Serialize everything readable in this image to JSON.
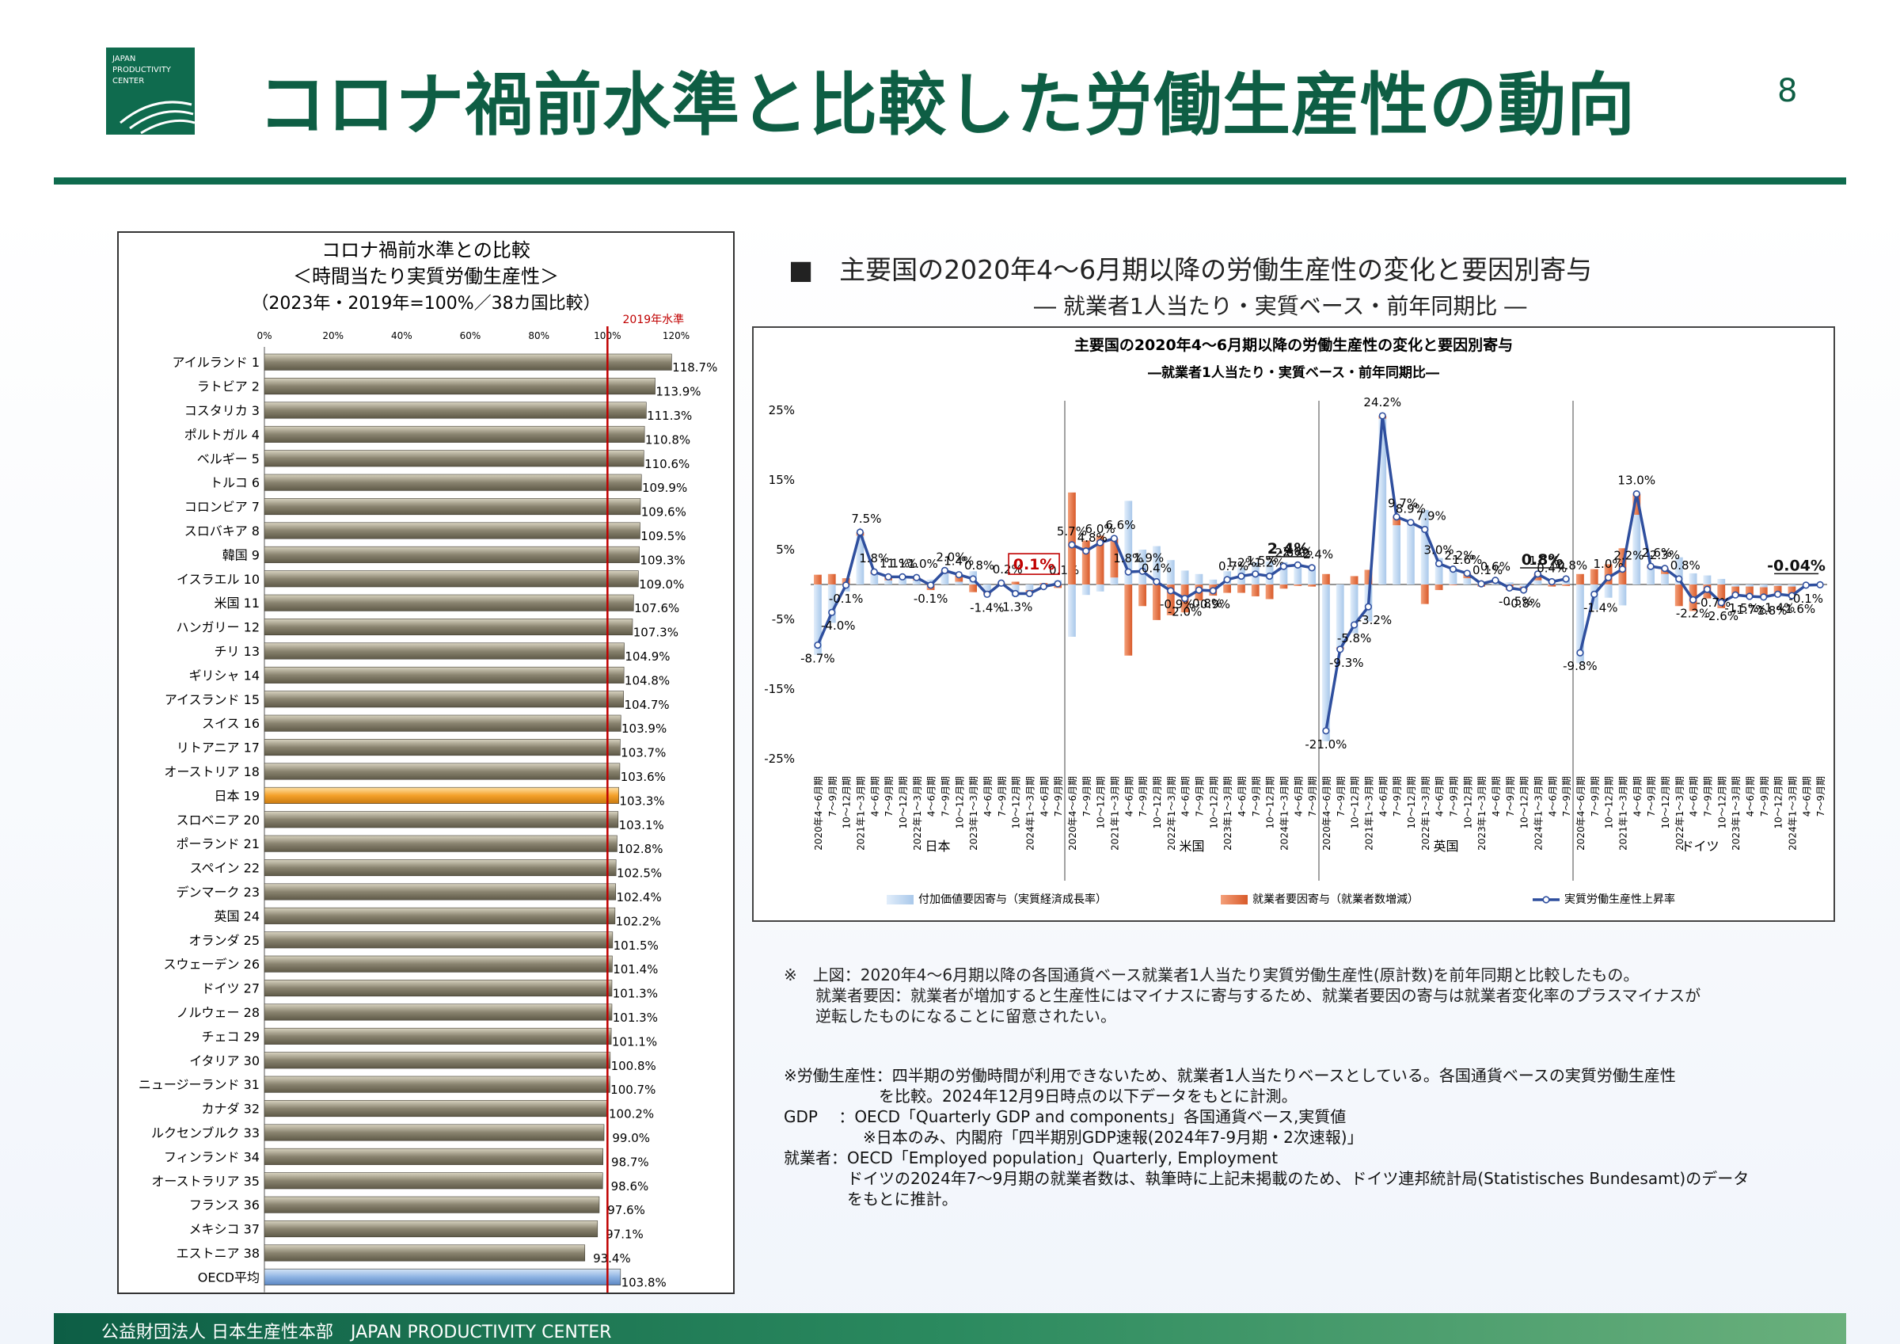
{
  "header": {
    "title": "コロナ禍前水準と比較した労働生産性の動向",
    "page_number": "8",
    "logo_lines": [
      "JAPAN",
      "PRODUCTIVITY",
      "CENTER"
    ]
  },
  "left_chart": {
    "title_lines": [
      "コロナ禍前水準との比較",
      "＜時間当たり実質労働生産性＞",
      "（2023年・2019年=100%／38カ国比較）"
    ],
    "ref_label": "2019年水準"
  },
  "right_panel": {
    "heading": "■　主要国の2020年4～6月期以降の労働生産性の変化と要因別寄与",
    "subheading": "― 就業者1人当たり・実質ベース・前年同期比 ―"
  },
  "notes": [
    "※　上図：2020年4～6月期以降の各国通貨ベース就業者1人当たり実質労働生産性(原計数)を前年同期と比較したもの。",
    "　　就業者要因：就業者が増加すると生産性にはマイナスに寄与するため、就業者要因の寄与は就業者変化率のプラスマイナスが",
    "　　逆転したものになることに留意されたい。"
  ],
  "definitions": [
    "※労働生産性：四半期の労働時間が利用できないため、就業者1人当たりベースとしている。各国通貨ベースの実質労働生産性",
    "　　　　　　を比較。2024年12月9日時点の以下データをもとに計測。",
    "GDP　 ：OECD「Quarterly GDP and components」各国通貨ベース,実質値",
    "　　　　　※日本のみ、内閣府「四半期別GDP速報(2024年7-9月期・2次速報)」",
    "就業者：OECD「Employed population」Quarterly, Employment",
    "　　　　ドイツの2024年7～9月期の就業者数は、執筆時に上記未掲載のため、ドイツ連邦統計局(Statistisches Bundesamt)のデータ",
    "　　　　をもとに推計。"
  ],
  "footer": "公益財団法人 日本生産性本部　JAPAN PRODUCTIVITY CENTER",
  "colors": {
    "brand": "#0f6b4e",
    "bar": "#8a8470",
    "japan_bar": "#f4a12a",
    "oecd_bar": "#8fb4e3",
    "ref_line": "#c00000",
    "value_added": "#a9c8ea",
    "employment": "#d85a2a",
    "productivity_line": "#2f4f9e"
  },
  "chart_data": [
    {
      "type": "bar",
      "orientation": "horizontal",
      "categories": [
        "アイルランド 1",
        "ラトビア 2",
        "コスタリカ 3",
        "ポルトガル 4",
        "ベルギー 5",
        "トルコ 6",
        "コロンビア 7",
        "スロバキア 8",
        "韓国 9",
        "イスラエル 10",
        "米国 11",
        "ハンガリー 12",
        "チリ 13",
        "ギリシャ 14",
        "アイスランド 15",
        "スイス 16",
        "リトアニア 17",
        "オーストリア 18",
        "日本 19",
        "スロベニア 20",
        "ポーランド 21",
        "スペイン 22",
        "デンマーク 23",
        "英国 24",
        "オランダ 25",
        "スウェーデン 26",
        "ドイツ 27",
        "ノルウェー 28",
        "チェコ 29",
        "イタリア 30",
        "ニュージーランド 31",
        "カナダ 32",
        "ルクセンブルク 33",
        "フィンランド 34",
        "オーストラリア 35",
        "フランス 36",
        "メキシコ 37",
        "エストニア 38",
        "OECD平均"
      ],
      "values": [
        118.7,
        113.9,
        111.3,
        110.8,
        110.6,
        109.9,
        109.6,
        109.5,
        109.3,
        109.0,
        107.6,
        107.3,
        104.9,
        104.8,
        104.7,
        103.9,
        103.7,
        103.6,
        103.3,
        103.1,
        102.8,
        102.5,
        102.4,
        102.2,
        101.5,
        101.4,
        101.3,
        101.3,
        101.1,
        100.8,
        100.7,
        100.2,
        99.0,
        98.7,
        98.6,
        97.6,
        97.1,
        93.4,
        103.8
      ],
      "labels": [
        "118.7%",
        "113.9%",
        "111.3%",
        "110.8%",
        "110.6%",
        "109.9%",
        "109.6%",
        "109.5%",
        "109.3%",
        "109.0%",
        "107.6%",
        "107.3%",
        "104.9%",
        "104.8%",
        "104.7%",
        "103.9%",
        "103.7%",
        "103.6%",
        "103.3%",
        "103.1%",
        "102.8%",
        "102.5%",
        "102.4%",
        "102.2%",
        "101.5%",
        "101.4%",
        "101.3%",
        "101.3%",
        "101.1%",
        "100.8%",
        "100.7%",
        "100.2%",
        "99.0%",
        "98.7%",
        "98.6%",
        "97.6%",
        "97.1%",
        "93.4%",
        "103.8%"
      ],
      "xticks": [
        "0%",
        "20%",
        "40%",
        "60%",
        "80%",
        "100%",
        "120%"
      ],
      "xlim": [
        0,
        120
      ],
      "ref_value": 100,
      "highlight": {
        "日本 19": "japan_bar",
        "OECD平均": "oecd_bar"
      }
    },
    {
      "type": "bar+line",
      "title": "主要国の2020年4～6月期以降の労働生産性の変化と要因別寄与",
      "subtitle": "―就業者1人当たり・実質ベース・前年同期比―",
      "ylim": [
        -25,
        25
      ],
      "yticks": [
        "25%",
        "15%",
        "5%",
        "-5%",
        "-15%",
        "-25%"
      ],
      "quarter_labels": [
        "2020年4～6月期",
        "7～9月期",
        "10～12月期",
        "2021年1～3月期",
        "4～6月期",
        "7～9月期",
        "10～12月期",
        "2022年1～3月期",
        "4～6月期",
        "7～9月期",
        "10～12月期",
        "2023年1～3月期",
        "4～6月期",
        "7～9月期",
        "10～12月期",
        "2024年1～3月期",
        "4～6月期",
        "7～9月期"
      ],
      "legend": [
        "付加価値要因寄与（実質経済成長率）",
        "就業者要因寄与（就業者数増減）",
        "実質労働生産性上昇率"
      ],
      "groups": [
        {
          "name": "日本",
          "productivity": [
            -8.7,
            -4.0,
            -0.1,
            7.5,
            1.8,
            1.1,
            1.1,
            1.0,
            -0.1,
            2.0,
            1.4,
            0.8,
            -1.4,
            0.2,
            -1.3,
            -1.3,
            -0.3,
            0.1
          ],
          "value_added": [
            -10.1,
            -5.5,
            -1.0,
            7.0,
            1.5,
            0.6,
            0.9,
            0.6,
            0.7,
            1.6,
            0.4,
            1.9,
            -0.9,
            0.1,
            -1.7,
            -0.8,
            -0.5,
            0.6
          ],
          "employment": [
            1.4,
            1.5,
            0.9,
            0.5,
            0.3,
            0.5,
            0.2,
            0.4,
            -0.8,
            0.4,
            1.0,
            -1.1,
            -0.5,
            0.1,
            0.4,
            -0.5,
            0.2,
            -0.5
          ],
          "point_labels": [
            "-8.7%",
            "-4.0%",
            "-0.1%",
            "7.5%",
            "1.8%",
            "1.1%",
            "1.1%",
            "1.0%",
            "-0.1%",
            "2.0%",
            "1.4%",
            "0.8%",
            "-1.4%",
            "0.2%",
            "-1.3%",
            "",
            "",
            "0.1%"
          ]
        },
        {
          "name": "米国",
          "productivity": [
            5.7,
            4.8,
            6.0,
            6.6,
            1.8,
            1.9,
            0.4,
            -0.9,
            -2.0,
            -0.8,
            -0.9,
            0.7,
            1.2,
            1.5,
            1.2,
            2.6,
            2.8,
            2.4
          ],
          "value_added": [
            -7.5,
            -1.5,
            -1.0,
            1.0,
            12.0,
            5.0,
            5.5,
            3.5,
            2.0,
            1.5,
            0.7,
            1.9,
            2.4,
            3.2,
            3.3,
            3.2,
            3.0,
            2.7
          ],
          "employment": [
            13.2,
            6.3,
            7.0,
            5.6,
            -10.2,
            -3.1,
            -5.1,
            -4.4,
            -4.0,
            -2.3,
            -1.6,
            -1.2,
            -1.2,
            -1.7,
            -2.1,
            -0.6,
            -0.2,
            -0.3
          ],
          "point_labels": [
            "5.7%",
            "4.8%",
            "6.0%",
            "6.6%",
            "1.8%",
            "1.9%",
            "0.4%",
            "-0.9%",
            "-2.0%",
            "-0.8%",
            "-0.9%",
            "0.7%",
            "1.2%",
            "1.5%",
            "1.2%",
            "2.6%",
            "2.8%",
            "2.4%"
          ]
        },
        {
          "name": "英国",
          "productivity": [
            -21.0,
            -9.3,
            -5.8,
            -3.2,
            24.2,
            9.7,
            8.9,
            7.9,
            3.0,
            2.2,
            1.6,
            0.1,
            0.6,
            -0.5,
            -0.8,
            1.5,
            0.4,
            0.8
          ],
          "value_added": [
            -22.5,
            -9.0,
            -7.0,
            -5.3,
            23.8,
            8.5,
            8.9,
            10.7,
            3.8,
            2.3,
            0.9,
            0.4,
            0.2,
            0.3,
            -0.3,
            0.6,
            0.7,
            1.0
          ],
          "employment": [
            1.5,
            -0.3,
            1.2,
            2.1,
            0.4,
            1.2,
            0.0,
            -2.8,
            -0.8,
            -0.1,
            0.7,
            -0.3,
            0.4,
            -0.8,
            -0.5,
            0.9,
            -0.3,
            -0.2
          ],
          "point_labels": [
            "-21.0%",
            "-9.3%",
            "-5.8%",
            "-3.2%",
            "24.2%",
            "9.7%",
            "8.9%",
            "7.9%",
            "3.0%",
            "2.2%",
            "1.6%",
            "0.1%",
            "0.6%",
            "-0.5%",
            "-0.8%",
            "1.5%",
            "0.4%",
            "0.8%"
          ]
        },
        {
          "name": "ドイツ",
          "productivity": [
            -9.8,
            -1.4,
            1.0,
            2.2,
            13.0,
            2.6,
            2.3,
            0.8,
            -2.2,
            -0.7,
            -2.6,
            -1.5,
            -1.7,
            -1.8,
            -1.4,
            -1.6,
            -0.1,
            -0.04
          ],
          "value_added": [
            -11.3,
            -3.6,
            -1.9,
            -3.0,
            10.0,
            2.3,
            1.5,
            3.9,
            1.6,
            1.3,
            0.8,
            -0.3,
            -0.3,
            -0.4,
            -0.2,
            -0.3,
            -0.2,
            -0.1
          ],
          "employment": [
            1.5,
            2.2,
            2.9,
            5.2,
            3.0,
            0.3,
            0.8,
            -3.1,
            -3.8,
            -2.0,
            -3.4,
            -1.2,
            -1.4,
            -1.4,
            -1.2,
            -1.3,
            0.1,
            0.06
          ],
          "point_labels": [
            "-9.8%",
            "-1.4%",
            "1.0%",
            "2.2%",
            "13.0%",
            "2.6%",
            "2.3%",
            "0.8%",
            "-2.2%",
            "-0.7%",
            "-2.6%",
            "-1.5%",
            "-1.7%",
            "-1.8%",
            "-1.4%",
            "-1.6%",
            "-0.1%",
            ""
          ]
        }
      ],
      "latest_labels": [
        {
          "group": 0,
          "text": "0.1%",
          "boxed": true
        },
        {
          "group": 1,
          "text": "2.4%",
          "underline": true
        },
        {
          "group": 2,
          "text": "0.8%",
          "underline": true
        },
        {
          "group": 3,
          "text": "-0.04%",
          "underline": true
        }
      ]
    }
  ]
}
